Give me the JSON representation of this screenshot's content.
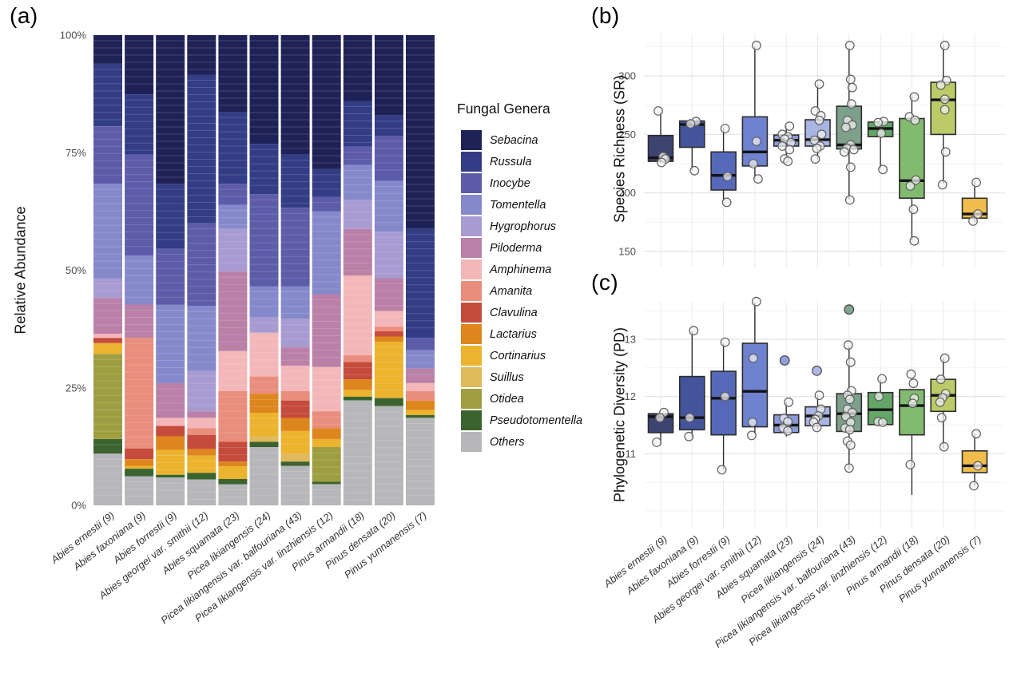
{
  "chart_data": [
    {
      "id": "a",
      "type": "bar",
      "variant": "stacked-percent",
      "label": "(a)",
      "ylabel": "Relative Abundance",
      "y_ticks": [
        "0%",
        "25%",
        "50%",
        "75%",
        "100%"
      ],
      "ylim": [
        0,
        100
      ],
      "legend_title": "Fungal Genera",
      "legend_position": "right",
      "grid": false,
      "categories": [
        "Abies ernestii (9)",
        "Abies faxoniana (9)",
        "Abies forrestii (9)",
        "Abies georgei var. smithii (12)",
        "Abies squamata (23)",
        "Picea likiangensis (24)",
        "Picea likiangensis var. balfouriana (43)",
        "Picea likiangensis var. linzhiensis (12)",
        "Pinus armandii (18)",
        "Pinus densata (20)",
        "Pinus yunnanensis (7)"
      ],
      "series": [
        {
          "name": "Sebacina",
          "color": "#1f2257",
          "values": [
            6.1,
            12.6,
            31.6,
            8.4,
            16.3,
            23.1,
            25.4,
            28.5,
            14.0,
            17.1,
            41.2
          ]
        },
        {
          "name": "Russula",
          "color": "#333d85",
          "values": [
            13.3,
            12.8,
            13.8,
            31.6,
            15.3,
            10.7,
            11.3,
            5.9,
            9.7,
            4.3,
            23.2
          ]
        },
        {
          "name": "Inocybe",
          "color": "#5c5ca9",
          "values": [
            12.2,
            21.5,
            11.9,
            17.6,
            4.5,
            19.6,
            16.7,
            3.1,
            3.9,
            9.6,
            2.6
          ]
        },
        {
          "name": "Tomentella",
          "color": "#8589cc",
          "values": [
            20.1,
            10.4,
            16.7,
            13.7,
            5.1,
            6.6,
            7.0,
            17.6,
            7.4,
            10.8,
            3.9
          ]
        },
        {
          "name": "Hygrophorus",
          "color": "#a79bd1",
          "values": [
            4.2,
            0,
            0,
            8.7,
            9.1,
            3.3,
            6.0,
            0,
            6.2,
            9.9,
            0
          ]
        },
        {
          "name": "Piloderma",
          "color": "#ba80a7",
          "values": [
            7.6,
            7.1,
            7.4,
            1.4,
            16.9,
            0,
            3.9,
            15.5,
            9.9,
            7.0,
            3.1
          ]
        },
        {
          "name": "Amphinema",
          "color": "#f3b7ba",
          "values": [
            0.9,
            0,
            1.7,
            2.2,
            8.5,
            9.3,
            5.4,
            9.4,
            17.0,
            3.3,
            1.7
          ]
        },
        {
          "name": "Amanita",
          "color": "#e98d7c",
          "values": [
            0,
            23.5,
            0,
            1.4,
            10.8,
            3.7,
            2.0,
            3.6,
            1.4,
            1.0,
            2.0
          ]
        },
        {
          "name": "Clavulina",
          "color": "#c54b3c",
          "values": [
            1.1,
            2.3,
            2.2,
            3.0,
            4.2,
            0,
            3.7,
            0,
            3.7,
            1.1,
            0
          ]
        },
        {
          "name": "Lactarius",
          "color": "#de861e",
          "values": [
            0,
            1.4,
            2.9,
            1.4,
            1.0,
            4.0,
            2.8,
            2.3,
            2.3,
            1.1,
            2.0
          ]
        },
        {
          "name": "Cortinarius",
          "color": "#ecb32e",
          "values": [
            2.3,
            0.6,
            5.3,
            3.7,
            2.7,
            5.0,
            4.8,
            1.7,
            1.4,
            12.0,
            1.1
          ]
        },
        {
          "name": "Suillus",
          "color": "#dfb95a",
          "values": [
            0,
            0,
            0,
            0,
            0,
            1.2,
            1.7,
            0,
            0,
            0,
            0
          ]
        },
        {
          "name": "Otidea",
          "color": "#9e9e41",
          "values": [
            18.1,
            0,
            0,
            0,
            0,
            0,
            0,
            7.4,
            0,
            0,
            0
          ]
        },
        {
          "name": "Pseudotomentella",
          "color": "#3a6330",
          "values": [
            3.1,
            1.6,
            0.6,
            1.4,
            1.1,
            1.1,
            0.9,
            0.5,
            0.8,
            1.7,
            0.6
          ]
        },
        {
          "name": "Others",
          "color": "#b7b7ba",
          "values": [
            11.0,
            6.2,
            5.9,
            5.5,
            4.5,
            12.4,
            8.4,
            4.5,
            22.3,
            21.1,
            18.6
          ]
        }
      ]
    },
    {
      "id": "b",
      "type": "box",
      "label": "(b)",
      "ylabel": "Species Richness (SR)",
      "y_ticks": [
        150,
        200,
        250,
        300
      ],
      "ylim": [
        136,
        336
      ],
      "grid": true,
      "categories": [
        "Abies ernestii (9)",
        "Abies faxoniana (9)",
        "Abies forrestii (9)",
        "Abies georgei var. smithii (12)",
        "Abies squamata (23)",
        "Picea likiangensis (24)",
        "Picea likiangensis var. balfouriana (43)",
        "Picea likiangensis var. linzhiensis (12)",
        "Pinus armandii (18)",
        "Pinus densata (20)",
        "Pinus yunnanensis (7)"
      ],
      "colors": [
        "#3d4470",
        "#44549b",
        "#5668b8",
        "#6e82d0",
        "#8c9cda",
        "#a9b5e2",
        "#7da08a",
        "#63a668",
        "#82bb70",
        "#bcca67",
        "#f0bd4c"
      ],
      "boxes": [
        {
          "q1": 227,
          "median": 230,
          "q3": 249,
          "whisker_low": 226,
          "whisker_high": 269,
          "points": [
            [
              270,
              -3
            ],
            [
              231,
              3
            ],
            [
              229,
              6
            ],
            [
              226,
              1
            ]
          ]
        },
        {
          "q1": 239,
          "median": 258.5,
          "q3": 261.5,
          "whisker_low": 219,
          "whisker_high": 261.5,
          "points": [
            [
              261,
              5
            ],
            [
              259,
              -2
            ],
            [
              219,
              3
            ]
          ]
        },
        {
          "q1": 202.5,
          "median": 215,
          "q3": 235,
          "whisker_low": 193,
          "whisker_high": 255.5,
          "points": [
            [
              255,
              2
            ],
            [
              214,
              5
            ],
            [
              192,
              4
            ]
          ]
        },
        {
          "q1": 223,
          "median": 235,
          "q3": 265,
          "whisker_low": 211.5,
          "whisker_high": 325,
          "points": [
            [
              326,
              2
            ],
            [
              244,
              2
            ],
            [
              225,
              -2
            ],
            [
              212,
              4
            ]
          ]
        },
        {
          "q1": 240,
          "median": 245,
          "q3": 249.5,
          "whisker_low": 227,
          "whisker_high": 257.5,
          "points": [
            [
              257,
              4
            ],
            [
              250,
              -5
            ],
            [
              248,
              2
            ],
            [
              246,
              -2
            ],
            [
              243,
              6
            ],
            [
              240,
              -5
            ],
            [
              237,
              4
            ],
            [
              229,
              -2
            ],
            [
              227,
              2
            ]
          ]
        },
        {
          "q1": 240,
          "median": 245.5,
          "q3": 262.5,
          "whisker_low": 228.5,
          "whisker_high": 293,
          "points": [
            [
              293,
              2
            ],
            [
              270,
              -3
            ],
            [
              266,
              4
            ],
            [
              262,
              2
            ],
            [
              250,
              5
            ],
            [
              245,
              -4
            ],
            [
              240,
              3
            ],
            [
              238,
              -1
            ],
            [
              229,
              -3
            ]
          ]
        },
        {
          "q1": 237.5,
          "median": 241,
          "q3": 274,
          "whisker_low": 194.5,
          "whisker_high": 324,
          "points": [
            [
              326,
              1
            ],
            [
              297,
              2
            ],
            [
              290,
              4
            ],
            [
              276,
              3
            ],
            [
              262,
              -2
            ],
            [
              258,
              4
            ],
            [
              256,
              -4
            ],
            [
              241,
              2
            ],
            [
              238,
              -3
            ],
            [
              237,
              6
            ],
            [
              235,
              -6
            ],
            [
              222,
              2
            ],
            [
              194,
              1
            ]
          ]
        },
        {
          "q1": 248,
          "median": 255,
          "q3": 260.5,
          "whisker_low": 220.5,
          "whisker_high": 260.5,
          "points": [
            [
              261,
              4
            ],
            [
              260,
              -3
            ],
            [
              251,
              1
            ],
            [
              220,
              3
            ]
          ]
        },
        {
          "q1": 195.5,
          "median": 210.5,
          "q3": 263.5,
          "whisker_low": 160,
          "whisker_high": 283,
          "points": [
            [
              282,
              3
            ],
            [
              265,
              -3
            ],
            [
              262,
              4
            ],
            [
              211,
              5
            ],
            [
              206,
              -2
            ],
            [
              186,
              2
            ],
            [
              159,
              3
            ]
          ]
        },
        {
          "q1": 250,
          "median": 279.5,
          "q3": 294.5,
          "whisker_low": 208,
          "whisker_high": 326,
          "points": [
            [
              326,
              2
            ],
            [
              296,
              4
            ],
            [
              292,
              -3
            ],
            [
              280,
              2
            ],
            [
              271,
              2
            ],
            [
              235,
              3
            ],
            [
              207,
              -1
            ]
          ]
        },
        {
          "q1": 178.5,
          "median": 182,
          "q3": 195.5,
          "whisker_low": 175,
          "whisker_high": 210,
          "points": [
            [
              209,
              2
            ],
            [
              182,
              4
            ],
            [
              176,
              -2
            ]
          ]
        }
      ]
    },
    {
      "id": "c",
      "type": "box",
      "label": "(c)",
      "ylabel": "Phylogenetic Diversity (PD)",
      "y_ticks": [
        11,
        12,
        13
      ],
      "ylim": [
        9.7,
        13.75
      ],
      "grid": true,
      "categories": [
        "Abies ernestii (9)",
        "Abies faxoniana (9)",
        "Abies forrestii (9)",
        "Abies georgei var. smithii (12)",
        "Abies squamata (23)",
        "Picea likiangensis (24)",
        "Picea likiangensis var. balfouriana (43)",
        "Picea likiangensis var. linzhiensis (12)",
        "Pinus armandii (18)",
        "Pinus densata (20)",
        "Pinus yunnanensis (7)"
      ],
      "colors": [
        "#3d4470",
        "#44549b",
        "#5668b8",
        "#6e82d0",
        "#8c9cda",
        "#a9b5e2",
        "#7da08a",
        "#63a668",
        "#82bb70",
        "#bcca67",
        "#f0bd4c"
      ],
      "boxes": [
        {
          "q1": 11.37,
          "median": 11.65,
          "q3": 11.7,
          "whisker_low": 11.16,
          "whisker_high": 11.7,
          "points": [
            [
              11.72,
              4
            ],
            [
              11.63,
              -1
            ],
            [
              11.2,
              -5
            ]
          ]
        },
        {
          "q1": 11.42,
          "median": 11.63,
          "q3": 12.35,
          "whisker_low": 11.28,
          "whisker_high": 13.14,
          "points": [
            [
              13.15,
              2
            ],
            [
              11.63,
              -3
            ],
            [
              11.3,
              -4
            ]
          ]
        },
        {
          "q1": 11.33,
          "median": 11.97,
          "q3": 12.44,
          "whisker_low": 10.72,
          "whisker_high": 12.93,
          "points": [
            [
              12.95,
              2
            ],
            [
              12.0,
              2
            ],
            [
              10.72,
              -2
            ]
          ]
        },
        {
          "q1": 11.47,
          "median": 12.09,
          "q3": 12.93,
          "whisker_low": 11.35,
          "whisker_high": 13.64,
          "points": [
            [
              13.66,
              2
            ],
            [
              12.67,
              -2
            ],
            [
              11.55,
              -3
            ],
            [
              11.32,
              -4
            ]
          ]
        },
        {
          "q1": 11.37,
          "median": 11.5,
          "q3": 11.68,
          "whisker_low": 11.3,
          "whisker_high": 11.9,
          "points": [
            [
              11.9,
              3
            ],
            [
              11.62,
              -3
            ],
            [
              11.56,
              2
            ],
            [
              11.45,
              -4
            ],
            [
              11.4,
              2
            ]
          ],
          "outliers": [
            [
              12.63,
              -2
            ]
          ]
        },
        {
          "q1": 11.49,
          "median": 11.66,
          "q3": 11.82,
          "whisker_low": 11.42,
          "whisker_high": 12.02,
          "points": [
            [
              12.02,
              2
            ],
            [
              11.78,
              4
            ],
            [
              11.66,
              1
            ],
            [
              11.6,
              -3
            ],
            [
              11.55,
              -5
            ],
            [
              11.46,
              -1
            ]
          ],
          "outliers": [
            [
              12.45,
              -1
            ]
          ]
        },
        {
          "q1": 11.39,
          "median": 11.7,
          "q3": 12.05,
          "whisker_low": 10.72,
          "whisker_high": 12.88,
          "points": [
            [
              12.9,
              -1
            ],
            [
              12.6,
              2
            ],
            [
              12.1,
              3
            ],
            [
              12.02,
              -2
            ],
            [
              11.95,
              1
            ],
            [
              11.78,
              -2
            ],
            [
              11.72,
              4
            ],
            [
              11.65,
              -4
            ],
            [
              11.55,
              2
            ],
            [
              11.45,
              -5
            ],
            [
              11.42,
              1
            ],
            [
              11.22,
              -2
            ],
            [
              11.15,
              2
            ],
            [
              10.75,
              0
            ]
          ],
          "outliers": [
            [
              13.52,
              0
            ]
          ]
        },
        {
          "q1": 11.51,
          "median": 11.77,
          "q3": 12.07,
          "whisker_low": 11.51,
          "whisker_high": 12.3,
          "points": [
            [
              12.31,
              2
            ],
            [
              12.0,
              -2
            ],
            [
              11.56,
              -3
            ],
            [
              11.55,
              3
            ]
          ]
        },
        {
          "q1": 11.33,
          "median": 11.84,
          "q3": 12.12,
          "whisker_low": 10.28,
          "whisker_high": 12.12,
          "points": [
            [
              12.39,
              -1
            ],
            [
              12.23,
              2
            ],
            [
              11.97,
              3
            ],
            [
              11.88,
              1
            ],
            [
              10.81,
              -2
            ]
          ]
        },
        {
          "q1": 11.74,
          "median": 12.02,
          "q3": 12.3,
          "whisker_low": 11.1,
          "whisker_high": 12.67,
          "points": [
            [
              12.67,
              2
            ],
            [
              12.3,
              -3
            ],
            [
              12.05,
              3
            ],
            [
              11.98,
              -1
            ],
            [
              11.9,
              -4
            ],
            [
              11.63,
              -2
            ],
            [
              11.12,
              1
            ]
          ]
        },
        {
          "q1": 10.67,
          "median": 10.79,
          "q3": 11.05,
          "whisker_low": 10.44,
          "whisker_high": 11.35,
          "points": [
            [
              11.35,
              2
            ],
            [
              10.79,
              4
            ],
            [
              10.44,
              -1
            ]
          ]
        }
      ]
    }
  ]
}
